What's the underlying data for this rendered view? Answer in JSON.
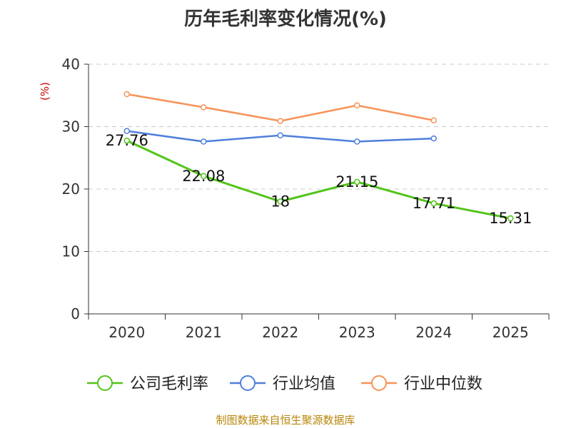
{
  "chart_data": {
    "type": "line",
    "title": "历年毛利率变化情况(%)",
    "ylabel": "(%)",
    "xlabel": "",
    "ylim": [
      0,
      40
    ],
    "yticks": [
      0,
      10,
      20,
      30,
      40
    ],
    "grid": true,
    "legend_position": "bottom",
    "categories": [
      "2020",
      "2021",
      "2022",
      "2023",
      "2024",
      "2025"
    ],
    "series": [
      {
        "name": "公司毛利率",
        "color": "#52c41a",
        "values": [
          27.76,
          22.08,
          18,
          21.15,
          17.71,
          15.31
        ],
        "labels": [
          "27.76",
          "22.08",
          "18",
          "21.15",
          "17.71",
          "15.31"
        ]
      },
      {
        "name": "行业均值",
        "color": "#4e7fdb",
        "values": [
          29.3,
          27.6,
          28.6,
          27.6,
          28.1,
          null
        ]
      },
      {
        "name": "行业中位数",
        "color": "#f79259",
        "values": [
          35.2,
          33.1,
          30.9,
          33.4,
          31.0,
          null
        ]
      }
    ]
  },
  "source": "制图数据来自恒生聚源数据库",
  "colors": {
    "axis": "#333333",
    "grid": "#cccccc",
    "ylabel": "#cc0000",
    "source": "#b8860b"
  }
}
